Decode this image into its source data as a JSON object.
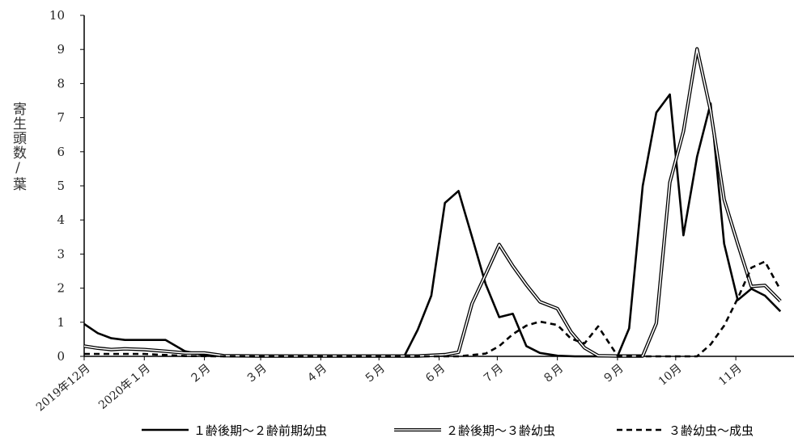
{
  "chart_data": {
    "type": "line",
    "title": "",
    "xlabel": "",
    "ylabel": "寄生頭数/葉",
    "ylim": [
      0,
      10
    ],
    "yticks": [
      0,
      1,
      2,
      3,
      4,
      5,
      6,
      7,
      8,
      9,
      10
    ],
    "grid": false,
    "legend": "bottom",
    "x_period": [
      "2019-12",
      "2020-11"
    ],
    "xticks": [
      {
        "label": "2019年12月",
        "month": "2019-12"
      },
      {
        "label": "2020年１月",
        "month": "2020-01"
      },
      {
        "label": "２月",
        "month": "2020-02"
      },
      {
        "label": "３月",
        "month": "2020-03"
      },
      {
        "label": "４月",
        "month": "2020-04"
      },
      {
        "label": "５月",
        "month": "2020-05"
      },
      {
        "label": "６月",
        "month": "2020-06"
      },
      {
        "label": "７月",
        "month": "2020-07"
      },
      {
        "label": "８月",
        "month": "2020-08"
      },
      {
        "label": "９月",
        "month": "2020-09"
      },
      {
        "label": "10月",
        "month": "2020-10"
      },
      {
        "label": "11月",
        "month": "2020-11"
      }
    ],
    "series": [
      {
        "name": "１齢後期～２齢前期幼虫",
        "style": "solid",
        "color": "#000000",
        "points": [
          {
            "date": "2019-12-01",
            "value": 0.95
          },
          {
            "date": "2019-12-08",
            "value": 0.68
          },
          {
            "date": "2019-12-15",
            "value": 0.53
          },
          {
            "date": "2019-12-22",
            "value": 0.48
          },
          {
            "date": "2020-01-01",
            "value": 0.48
          },
          {
            "date": "2020-01-12",
            "value": 0.48
          },
          {
            "date": "2020-01-22",
            "value": 0.15
          },
          {
            "date": "2020-02-01",
            "value": 0.03
          },
          {
            "date": "2020-02-11",
            "value": 0.01
          },
          {
            "date": "2020-03-01",
            "value": 0.0
          },
          {
            "date": "2020-04-01",
            "value": 0.0
          },
          {
            "date": "2020-05-01",
            "value": 0.0
          },
          {
            "date": "2020-05-14",
            "value": 0.0
          },
          {
            "date": "2020-05-21",
            "value": 0.78
          },
          {
            "date": "2020-05-28",
            "value": 1.78
          },
          {
            "date": "2020-06-04",
            "value": 4.5
          },
          {
            "date": "2020-06-11",
            "value": 4.85
          },
          {
            "date": "2020-06-18",
            "value": 3.5
          },
          {
            "date": "2020-06-25",
            "value": 2.12
          },
          {
            "date": "2020-07-02",
            "value": 1.15
          },
          {
            "date": "2020-07-09",
            "value": 1.25
          },
          {
            "date": "2020-07-16",
            "value": 0.3
          },
          {
            "date": "2020-07-23",
            "value": 0.1
          },
          {
            "date": "2020-08-01",
            "value": 0.02
          },
          {
            "date": "2020-08-10",
            "value": 0.0
          },
          {
            "date": "2020-08-24",
            "value": 0.0
          },
          {
            "date": "2020-09-01",
            "value": 0.0
          },
          {
            "date": "2020-09-07",
            "value": 0.82
          },
          {
            "date": "2020-09-14",
            "value": 5.0
          },
          {
            "date": "2020-09-21",
            "value": 7.15
          },
          {
            "date": "2020-09-28",
            "value": 7.68
          },
          {
            "date": "2020-10-05",
            "value": 3.55
          },
          {
            "date": "2020-10-12",
            "value": 5.85
          },
          {
            "date": "2020-10-19",
            "value": 7.42
          },
          {
            "date": "2020-10-26",
            "value": 3.3
          },
          {
            "date": "2020-11-02",
            "value": 1.65
          },
          {
            "date": "2020-11-09",
            "value": 1.98
          },
          {
            "date": "2020-11-16",
            "value": 1.78
          },
          {
            "date": "2020-11-24",
            "value": 1.32
          }
        ]
      },
      {
        "name": "２齢後期～３齢幼虫",
        "style": "double",
        "color": "#000000",
        "points": [
          {
            "date": "2019-12-01",
            "value": 0.3
          },
          {
            "date": "2019-12-08",
            "value": 0.24
          },
          {
            "date": "2019-12-15",
            "value": 0.2
          },
          {
            "date": "2019-12-22",
            "value": 0.22
          },
          {
            "date": "2020-01-01",
            "value": 0.2
          },
          {
            "date": "2020-01-12",
            "value": 0.15
          },
          {
            "date": "2020-01-22",
            "value": 0.1
          },
          {
            "date": "2020-02-01",
            "value": 0.1
          },
          {
            "date": "2020-02-11",
            "value": 0.02
          },
          {
            "date": "2020-03-01",
            "value": 0.01
          },
          {
            "date": "2020-04-01",
            "value": 0.01
          },
          {
            "date": "2020-05-01",
            "value": 0.01
          },
          {
            "date": "2020-05-21",
            "value": 0.01
          },
          {
            "date": "2020-06-04",
            "value": 0.05
          },
          {
            "date": "2020-06-11",
            "value": 0.12
          },
          {
            "date": "2020-06-18",
            "value": 1.55
          },
          {
            "date": "2020-06-25",
            "value": 2.4
          },
          {
            "date": "2020-07-02",
            "value": 3.28
          },
          {
            "date": "2020-07-09",
            "value": 2.65
          },
          {
            "date": "2020-07-16",
            "value": 2.1
          },
          {
            "date": "2020-07-23",
            "value": 1.6
          },
          {
            "date": "2020-08-01",
            "value": 1.4
          },
          {
            "date": "2020-08-08",
            "value": 0.72
          },
          {
            "date": "2020-08-15",
            "value": 0.25
          },
          {
            "date": "2020-08-22",
            "value": 0.02
          },
          {
            "date": "2020-09-01",
            "value": 0.01
          },
          {
            "date": "2020-09-14",
            "value": 0.01
          },
          {
            "date": "2020-09-21",
            "value": 0.97
          },
          {
            "date": "2020-09-28",
            "value": 5.1
          },
          {
            "date": "2020-10-05",
            "value": 6.6
          },
          {
            "date": "2020-10-12",
            "value": 9.02
          },
          {
            "date": "2020-10-19",
            "value": 7.2
          },
          {
            "date": "2020-10-26",
            "value": 4.6
          },
          {
            "date": "2020-11-02",
            "value": 3.3
          },
          {
            "date": "2020-11-09",
            "value": 2.05
          },
          {
            "date": "2020-11-16",
            "value": 2.08
          },
          {
            "date": "2020-11-24",
            "value": 1.62
          }
        ]
      },
      {
        "name": "３齢幼虫～成虫",
        "style": "dashed",
        "color": "#000000",
        "points": [
          {
            "date": "2019-12-01",
            "value": 0.07
          },
          {
            "date": "2020-01-01",
            "value": 0.07
          },
          {
            "date": "2020-01-22",
            "value": 0.01
          },
          {
            "date": "2020-02-11",
            "value": 0.0
          },
          {
            "date": "2020-05-01",
            "value": 0.0
          },
          {
            "date": "2020-06-11",
            "value": 0.0
          },
          {
            "date": "2020-06-25",
            "value": 0.08
          },
          {
            "date": "2020-07-02",
            "value": 0.3
          },
          {
            "date": "2020-07-09",
            "value": 0.65
          },
          {
            "date": "2020-07-16",
            "value": 0.9
          },
          {
            "date": "2020-07-23",
            "value": 1.02
          },
          {
            "date": "2020-08-01",
            "value": 0.92
          },
          {
            "date": "2020-08-08",
            "value": 0.52
          },
          {
            "date": "2020-08-15",
            "value": 0.38
          },
          {
            "date": "2020-08-22",
            "value": 0.88
          },
          {
            "date": "2020-09-01",
            "value": 0.02
          },
          {
            "date": "2020-09-14",
            "value": 0.0
          },
          {
            "date": "2020-10-12",
            "value": 0.0
          },
          {
            "date": "2020-10-19",
            "value": 0.35
          },
          {
            "date": "2020-10-26",
            "value": 0.9
          },
          {
            "date": "2020-11-02",
            "value": 1.7
          },
          {
            "date": "2020-11-09",
            "value": 2.6
          },
          {
            "date": "2020-11-16",
            "value": 2.78
          },
          {
            "date": "2020-11-24",
            "value": 1.95
          }
        ]
      }
    ]
  }
}
